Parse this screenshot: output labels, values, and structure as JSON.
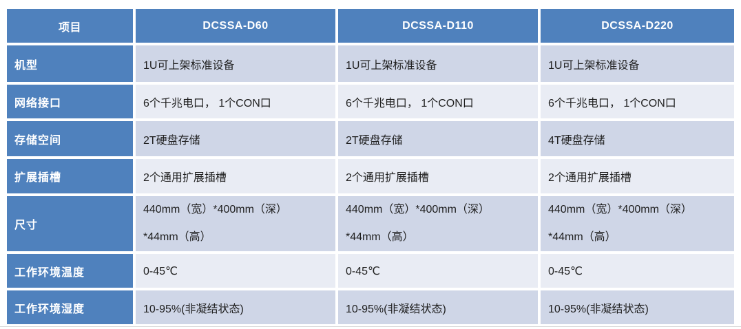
{
  "table": {
    "title_column_header": "项目",
    "colors": {
      "header_bg": "#4f81bd",
      "header_text": "#ffffff",
      "band_dark": "#cfd6e7",
      "band_light": "#e9ecf4",
      "body_text": "#1f1f1f",
      "bottom_rule": "#d9d9d9"
    },
    "columns": [
      "DCSSA-D60",
      "DCSSA-D110",
      "DCSSA-D220"
    ],
    "rows": [
      {
        "label": "机型",
        "values": [
          "1U可上架标准设备",
          "1U可上架标准设备",
          "1U可上架标准设备"
        ]
      },
      {
        "label": "网络接口",
        "values": [
          "6个千兆电口， 1个CON口",
          "6个千兆电口， 1个CON口",
          "6个千兆电口， 1个CON口"
        ]
      },
      {
        "label": "存储空间",
        "values": [
          "2T硬盘存储",
          "2T硬盘存储",
          "4T硬盘存储"
        ]
      },
      {
        "label": "扩展插槽",
        "values": [
          "2个通用扩展插槽",
          "2个通用扩展插槽",
          "2个通用扩展插槽"
        ]
      },
      {
        "label": "尺寸",
        "values": [
          "440mm（宽）*400mm（深）\n*44mm（高）",
          "440mm（宽）*400mm（深）\n*44mm（高）",
          "440mm（宽）*400mm（深）\n*44mm（高）"
        ]
      },
      {
        "label": "工作环境温度",
        "values": [
          "0-45℃",
          "0-45℃",
          "0-45℃"
        ]
      },
      {
        "label": "工作环境湿度",
        "values": [
          "10-95%(非凝结状态)",
          "10-95%(非凝结状态)",
          "10-95%(非凝结状态)"
        ]
      }
    ]
  }
}
